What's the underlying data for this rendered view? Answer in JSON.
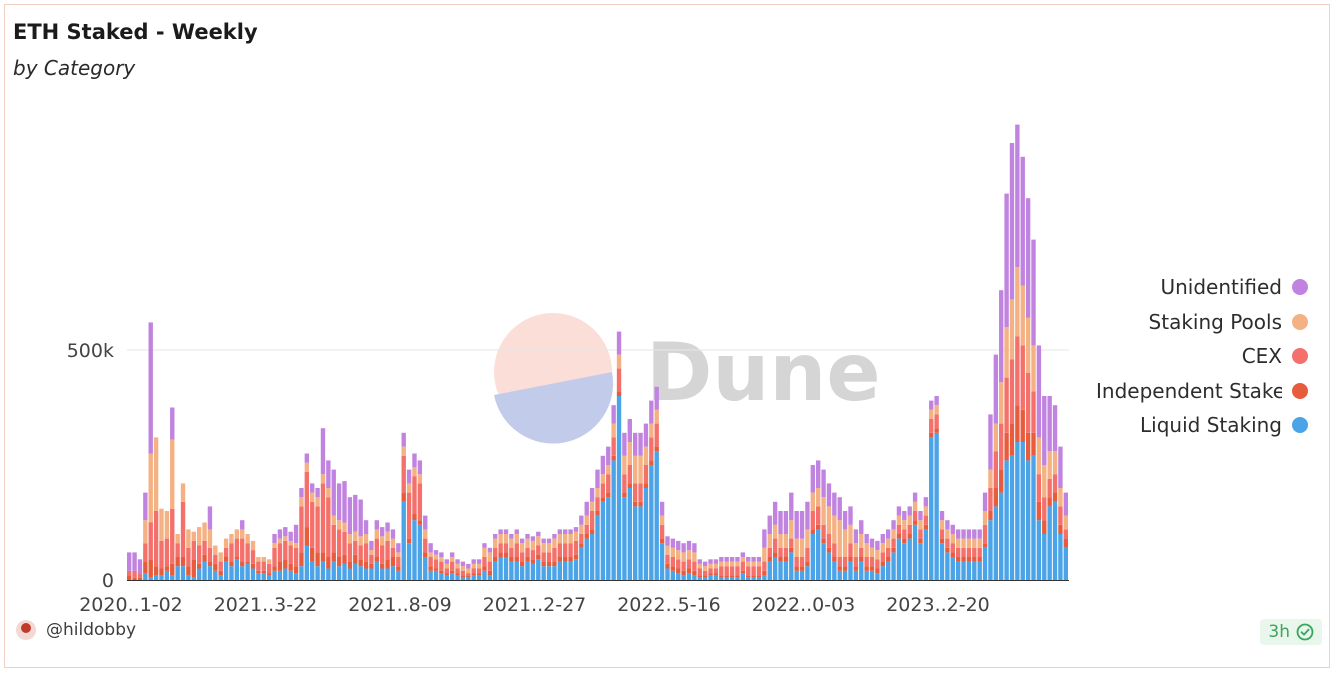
{
  "title": "ETH Staked - Weekly",
  "subtitle": "by Category",
  "watermark": "Dune",
  "author": "@hildobby",
  "refresh_label": "3h",
  "icons": {
    "avatar": "avatar-icon",
    "refresh": "check-circle-icon"
  },
  "chart_data": {
    "type": "bar",
    "stacked": true,
    "ylim": [
      0,
      1000000
    ],
    "y_ticks": [
      0,
      500000
    ],
    "y_tick_labels": [
      "0",
      "500k"
    ],
    "x_tick_labels": [
      "2020..1-02",
      "2021..3-22",
      "2021..8-09",
      "2021..2-27",
      "2022..5-16",
      "2022..0-03",
      "2023..2-20"
    ],
    "grid": true,
    "legend_position": "right",
    "series": [
      {
        "name": "Liquid Staking",
        "color": "#4ba3e8",
        "values": [
          0,
          0,
          0,
          15,
          5,
          10,
          10,
          20,
          10,
          30,
          30,
          10,
          5,
          25,
          40,
          30,
          20,
          10,
          40,
          30,
          45,
          30,
          35,
          25,
          15,
          15,
          10,
          20,
          20,
          25,
          20,
          15,
          30,
          75,
          40,
          30,
          40,
          25,
          40,
          30,
          35,
          25,
          35,
          30,
          25,
          25,
          40,
          25,
          25,
          30,
          20,
          170,
          80,
          130,
          120,
          50,
          20,
          20,
          15,
          10,
          15,
          10,
          5,
          5,
          10,
          10,
          20,
          10,
          40,
          50,
          50,
          40,
          40,
          30,
          40,
          35,
          45,
          30,
          30,
          30,
          40,
          40,
          40,
          45,
          70,
          90,
          100,
          140,
          170,
          180,
          260,
          400,
          180,
          200,
          160,
          160,
          200,
          250,
          280,
          80,
          25,
          20,
          15,
          10,
          15,
          10,
          5,
          5,
          10,
          10,
          5,
          5,
          5,
          5,
          15,
          5,
          5,
          5,
          10,
          40,
          50,
          40,
          40,
          60,
          20,
          20,
          30,
          100,
          110,
          80,
          60,
          40,
          20,
          20,
          40,
          20,
          40,
          20,
          20,
          15,
          30,
          40,
          60,
          90,
          80,
          90,
          120,
          80,
          110,
          310,
          320,
          80,
          60,
          50,
          40,
          40,
          40,
          40,
          40,
          70,
          130,
          160,
          190,
          260,
          270,
          300,
          300,
          260,
          270,
          130,
          100,
          160,
          170,
          100,
          70
        ]
      },
      {
        "name": "Independent Staker",
        "color": "#e85c3e",
        "values": [
          10,
          5,
          5,
          25,
          40,
          20,
          15,
          10,
          25,
          20,
          20,
          20,
          40,
          10,
          15,
          10,
          15,
          10,
          10,
          10,
          5,
          10,
          5,
          10,
          5,
          5,
          5,
          10,
          20,
          20,
          15,
          15,
          30,
          40,
          30,
          30,
          20,
          25,
          20,
          20,
          20,
          15,
          20,
          15,
          15,
          10,
          10,
          10,
          20,
          20,
          10,
          20,
          10,
          15,
          10,
          10,
          10,
          5,
          5,
          5,
          5,
          5,
          5,
          5,
          5,
          5,
          10,
          10,
          10,
          10,
          10,
          10,
          10,
          10,
          10,
          10,
          10,
          10,
          10,
          10,
          10,
          10,
          10,
          10,
          10,
          10,
          10,
          10,
          10,
          10,
          10,
          10,
          10,
          10,
          10,
          10,
          10,
          10,
          10,
          10,
          10,
          10,
          10,
          10,
          10,
          10,
          5,
          5,
          5,
          5,
          5,
          5,
          5,
          5,
          5,
          5,
          5,
          5,
          10,
          10,
          10,
          10,
          10,
          10,
          10,
          10,
          10,
          10,
          10,
          10,
          10,
          10,
          10,
          10,
          10,
          10,
          10,
          10,
          10,
          10,
          10,
          10,
          10,
          10,
          10,
          10,
          10,
          10,
          10,
          10,
          10,
          10,
          10,
          10,
          10,
          10,
          10,
          10,
          10,
          10,
          20,
          40,
          50,
          60,
          70,
          80,
          70,
          60,
          50,
          40,
          30,
          20,
          20,
          20,
          20
        ]
      },
      {
        "name": "CEX",
        "color": "#f4706b",
        "values": [
          10,
          15,
          10,
          40,
          80,
          120,
          60,
          60,
          120,
          30,
          120,
          40,
          40,
          40,
          30,
          30,
          20,
          20,
          20,
          40,
          40,
          50,
          40,
          30,
          20,
          20,
          20,
          40,
          40,
          40,
          40,
          40,
          100,
          120,
          100,
          100,
          150,
          130,
          60,
          60,
          50,
          40,
          30,
          30,
          40,
          20,
          40,
          40,
          40,
          20,
          20,
          80,
          100,
          80,
          80,
          30,
          20,
          20,
          20,
          10,
          20,
          10,
          10,
          5,
          10,
          10,
          20,
          20,
          20,
          20,
          20,
          20,
          30,
          20,
          20,
          20,
          20,
          20,
          20,
          30,
          30,
          30,
          30,
          30,
          20,
          20,
          40,
          30,
          30,
          40,
          40,
          50,
          40,
          40,
          40,
          40,
          40,
          50,
          50,
          30,
          20,
          20,
          20,
          20,
          20,
          20,
          15,
          10,
          10,
          10,
          20,
          20,
          20,
          20,
          20,
          20,
          20,
          20,
          20,
          20,
          30,
          20,
          20,
          20,
          20,
          20,
          30,
          40,
          40,
          30,
          30,
          30,
          20,
          20,
          30,
          20,
          20,
          20,
          20,
          20,
          20,
          20,
          20,
          20,
          20,
          20,
          20,
          20,
          20,
          30,
          30,
          20,
          20,
          20,
          20,
          20,
          20,
          20,
          20,
          40,
          50,
          80,
          100,
          120,
          140,
          150,
          140,
          130,
          90,
          60,
          50,
          40,
          40,
          40,
          20
        ]
      },
      {
        "name": "Staking Pools",
        "color": "#f4b183",
        "values": [
          0,
          0,
          0,
          50,
          150,
          160,
          70,
          60,
          150,
          20,
          40,
          40,
          20,
          40,
          40,
          40,
          20,
          20,
          20,
          20,
          20,
          20,
          20,
          20,
          10,
          10,
          10,
          10,
          10,
          10,
          10,
          10,
          20,
          20,
          20,
          20,
          20,
          20,
          20,
          20,
          20,
          20,
          20,
          20,
          20,
          10,
          20,
          20,
          20,
          20,
          10,
          20,
          20,
          20,
          20,
          20,
          10,
          10,
          10,
          10,
          10,
          10,
          10,
          10,
          10,
          10,
          20,
          20,
          20,
          20,
          20,
          20,
          20,
          20,
          20,
          20,
          20,
          20,
          20,
          20,
          20,
          20,
          20,
          20,
          20,
          20,
          20,
          20,
          20,
          20,
          30,
          30,
          40,
          50,
          60,
          60,
          40,
          30,
          30,
          20,
          20,
          20,
          20,
          20,
          20,
          20,
          10,
          10,
          10,
          10,
          10,
          10,
          10,
          10,
          10,
          10,
          10,
          10,
          30,
          30,
          30,
          30,
          30,
          40,
          40,
          40,
          40,
          40,
          40,
          60,
          60,
          60,
          80,
          60,
          40,
          30,
          30,
          30,
          20,
          20,
          20,
          20,
          20,
          20,
          20,
          20,
          20,
          20,
          20,
          20,
          20,
          20,
          20,
          20,
          20,
          20,
          20,
          20,
          20,
          30,
          40,
          60,
          90,
          110,
          130,
          150,
          130,
          120,
          100,
          80,
          70,
          60,
          50,
          40,
          30
        ]
      },
      {
        "name": "Unidentified",
        "color": "#c084e0",
        "values": [
          40,
          40,
          30,
          60,
          285,
          0,
          0,
          0,
          70,
          0,
          0,
          0,
          0,
          0,
          0,
          50,
          0,
          0,
          0,
          0,
          0,
          20,
          0,
          0,
          0,
          0,
          0,
          20,
          20,
          20,
          20,
          40,
          20,
          20,
          20,
          20,
          100,
          60,
          100,
          80,
          90,
          80,
          80,
          80,
          30,
          20,
          20,
          20,
          20,
          20,
          20,
          30,
          30,
          30,
          30,
          30,
          20,
          10,
          10,
          10,
          10,
          10,
          10,
          10,
          10,
          10,
          10,
          10,
          10,
          10,
          10,
          10,
          10,
          10,
          10,
          10,
          10,
          10,
          10,
          10,
          10,
          10,
          10,
          10,
          20,
          30,
          30,
          40,
          40,
          40,
          40,
          50,
          50,
          50,
          50,
          50,
          50,
          50,
          50,
          30,
          20,
          20,
          20,
          20,
          20,
          20,
          10,
          10,
          10,
          10,
          10,
          10,
          10,
          10,
          10,
          10,
          10,
          10,
          40,
          40,
          50,
          50,
          50,
          60,
          60,
          60,
          60,
          60,
          60,
          60,
          50,
          50,
          50,
          40,
          40,
          30,
          30,
          20,
          20,
          20,
          20,
          20,
          20,
          20,
          20,
          20,
          20,
          20,
          20,
          20,
          20,
          20,
          20,
          20,
          20,
          20,
          20,
          20,
          20,
          40,
          120,
          150,
          200,
          290,
          340,
          310,
          280,
          260,
          230,
          200,
          150,
          120,
          100,
          90,
          50
        ]
      }
    ]
  }
}
